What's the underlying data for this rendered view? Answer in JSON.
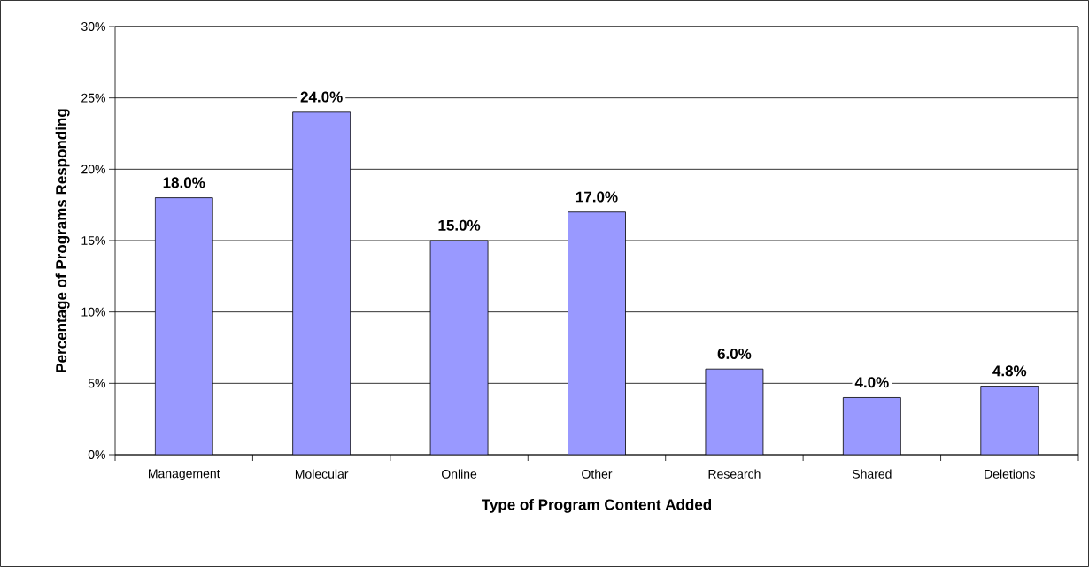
{
  "chart_data": {
    "type": "bar",
    "xlabel": "Type of Program Content Added",
    "ylabel": "Percentage of Programs Responding",
    "categories": [
      "Management",
      "Molecular",
      "Online",
      "Other",
      "Research",
      "Shared",
      "Deletions"
    ],
    "values": [
      18,
      24,
      15,
      17,
      6,
      4,
      4.8
    ],
    "value_labels": [
      "18.0%",
      "24.0%",
      "15.0%",
      "17.0%",
      "6.0%",
      "4.0%",
      "4.8%"
    ],
    "color": "#9999ff",
    "ylim": [
      0,
      30
    ],
    "yticks": [
      {
        "value": 0,
        "label": "0%"
      },
      {
        "value": 5,
        "label": "5%"
      },
      {
        "value": 10,
        "label": "10%"
      },
      {
        "value": 15,
        "label": "15%"
      },
      {
        "value": 20,
        "label": "20%"
      },
      {
        "value": 25,
        "label": "25%"
      },
      {
        "value": 30,
        "label": "30%"
      }
    ],
    "grid": "y"
  }
}
